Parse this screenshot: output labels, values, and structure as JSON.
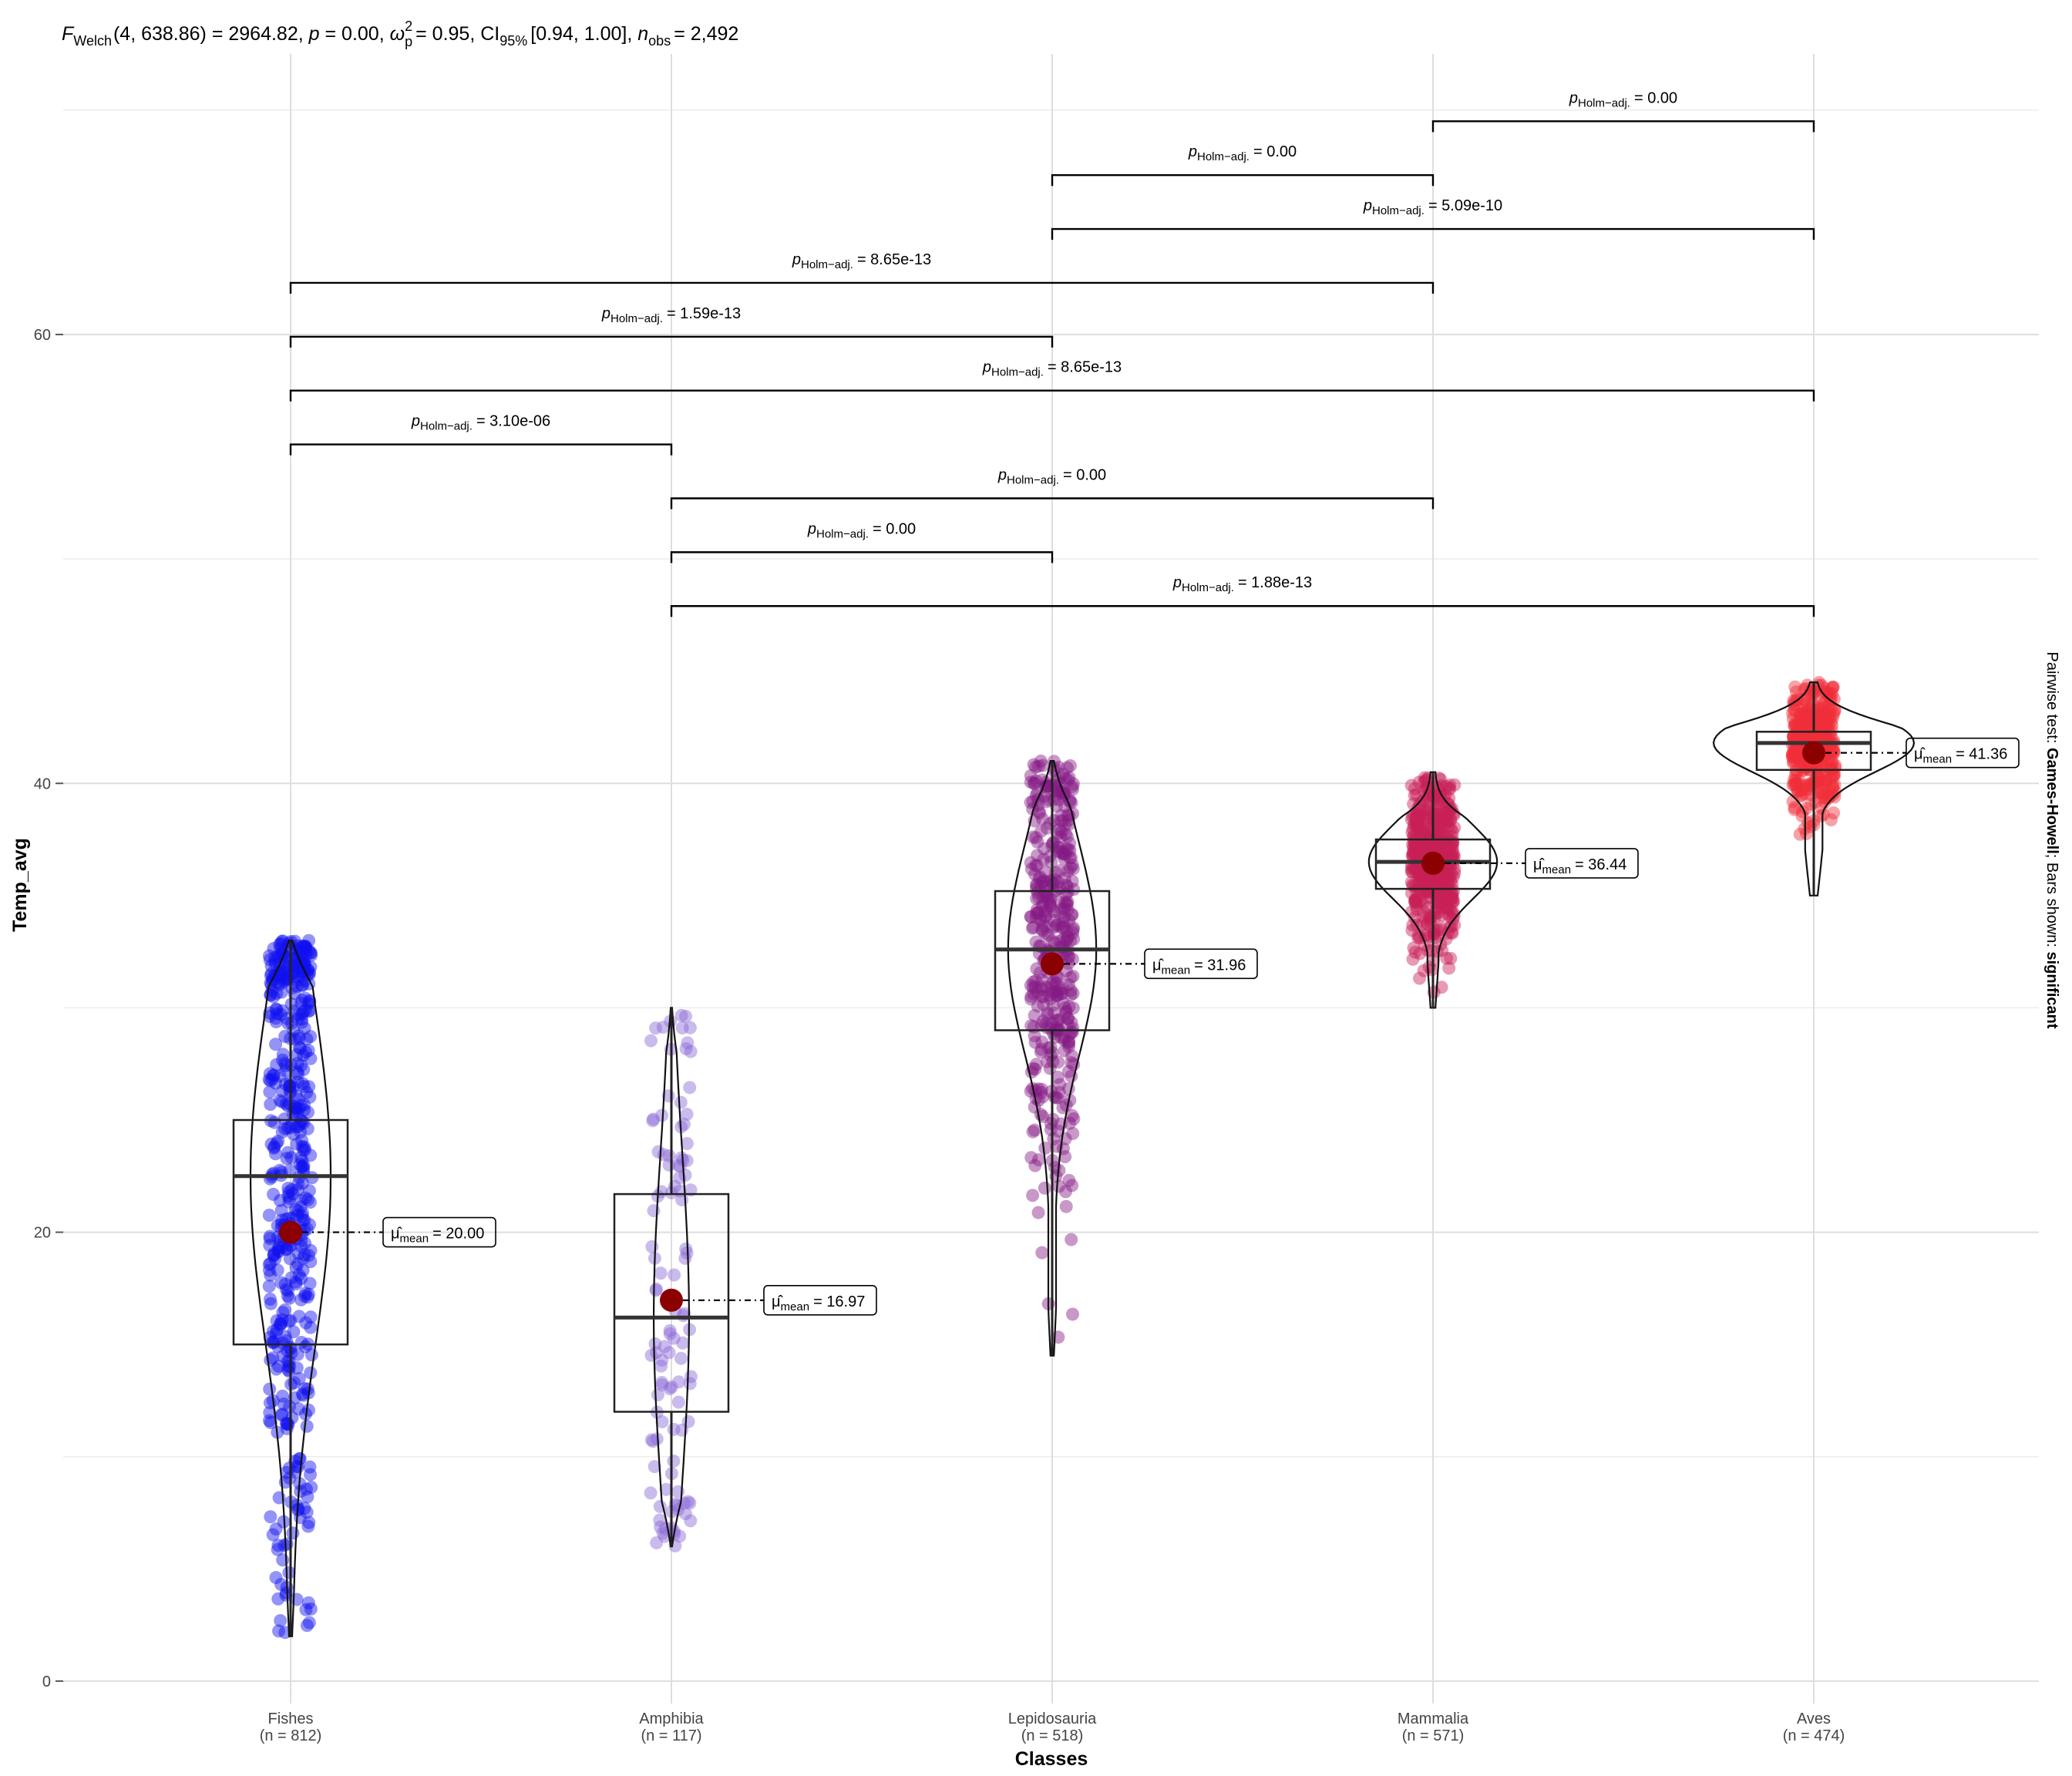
{
  "chart_data": {
    "type": "violin-box-scatter",
    "title": {
      "f_symbol": "F",
      "f_sub": "Welch",
      "f_args": "(4, 638.86) = 2964.82,",
      "p_symbol": "p",
      "p_text": "= 0.00,",
      "omega_symbol": "ω",
      "omega_sup": "2",
      "omega_sub": "p",
      "omega_text": "= 0.95, CI",
      "ci_sub": "95%",
      "ci_text": "[0.94, 1.00],",
      "n_symbol": "n",
      "n_sub": "obs",
      "n_text": "= 2,492"
    },
    "xlabel": "Classes",
    "ylabel": "Temp_avg",
    "ylim": [
      -1,
      72.5
    ],
    "yticks": [
      0,
      20,
      40,
      60
    ],
    "minor_yticks": [
      10,
      30,
      50,
      70
    ],
    "caption_prefix": "Pairwise test: ",
    "caption_bold1": "Games-Howell",
    "caption_mid": "; Bars shown: ",
    "caption_bold2": "significant",
    "mean_symbol": "μ̂",
    "mean_sub": "mean",
    "groups": [
      {
        "name": "Fishes",
        "n_label": "(n = 812)",
        "color": "#1010f0",
        "ymin": 2.0,
        "ymax": 33.0,
        "q1": 15.0,
        "median": 22.5,
        "q3": 25.0,
        "whisker_low": 2.0,
        "whisker_high": 33.0,
        "mean": 20.0,
        "mean_label": "= 20.00"
      },
      {
        "name": "Amphibia",
        "n_label": "(n = 117)",
        "color": "#8a68d8",
        "ymin": 6.0,
        "ymax": 30.0,
        "q1": 12.0,
        "median": 16.2,
        "q3": 21.7,
        "whisker_low": 6.0,
        "whisker_high": 30.0,
        "mean": 16.97,
        "mean_label": "= 16.97"
      },
      {
        "name": "Lepidosauria",
        "n_label": "(n = 518)",
        "color": "#861a86",
        "ymin": 14.5,
        "ymax": 41.0,
        "q1": 29.0,
        "median": 32.6,
        "q3": 35.2,
        "whisker_low": 14.5,
        "whisker_high": 41.0,
        "mean": 31.96,
        "mean_label": "= 31.96"
      },
      {
        "name": "Mammalia",
        "n_label": "(n = 571)",
        "color": "#c81e56",
        "ymin": 30.0,
        "ymax": 40.5,
        "q1": 35.3,
        "median": 36.5,
        "q3": 37.5,
        "whisker_low": 30.0,
        "whisker_high": 40.5,
        "mean": 36.44,
        "mean_label": "= 36.44"
      },
      {
        "name": "Aves",
        "n_label": "(n = 474)",
        "color": "#f02e3a",
        "ymin": 35.0,
        "ymax": 44.5,
        "q1": 40.6,
        "median": 41.8,
        "q3": 42.3,
        "whisker_low": 35.0,
        "whisker_high": 44.5,
        "mean": 41.36,
        "mean_label": "= 41.36"
      }
    ],
    "pairwise": [
      {
        "g1": 3,
        "g2": 4,
        "y": 69.5,
        "p_prefix": "p",
        "p_sub": "Holm−adj.",
        "p_value": "= 0.00"
      },
      {
        "g1": 2,
        "g2": 3,
        "y": 67.1,
        "p_prefix": "p",
        "p_sub": "Holm−adj.",
        "p_value": "= 0.00"
      },
      {
        "g1": 2,
        "g2": 4,
        "y": 64.7,
        "p_prefix": "p",
        "p_sub": "Holm−adj.",
        "p_value": "= 5.09e-10"
      },
      {
        "g1": 0,
        "g2": 3,
        "y": 62.3,
        "p_prefix": "p",
        "p_sub": "Holm−adj.",
        "p_value": "= 8.65e-13"
      },
      {
        "g1": 0,
        "g2": 2,
        "y": 59.9,
        "p_prefix": "p",
        "p_sub": "Holm−adj.",
        "p_value": "= 1.59e-13"
      },
      {
        "g1": 0,
        "g2": 4,
        "y": 57.5,
        "p_prefix": "p",
        "p_sub": "Holm−adj.",
        "p_value": "= 8.65e-13"
      },
      {
        "g1": 0,
        "g2": 1,
        "y": 55.1,
        "p_prefix": "p",
        "p_sub": "Holm−adj.",
        "p_value": "= 3.10e-06"
      },
      {
        "g1": 1,
        "g2": 3,
        "y": 52.7,
        "p_prefix": "p",
        "p_sub": "Holm−adj.",
        "p_value": "= 0.00"
      },
      {
        "g1": 1,
        "g2": 2,
        "y": 50.3,
        "p_prefix": "p",
        "p_sub": "Holm−adj.",
        "p_value": "= 0.00"
      },
      {
        "g1": 1,
        "g2": 4,
        "y": 47.9,
        "p_prefix": "p",
        "p_sub": "Holm−adj.",
        "p_value": "= 1.88e-13"
      }
    ],
    "grid": true,
    "mean_point_color": "#8b0000"
  }
}
